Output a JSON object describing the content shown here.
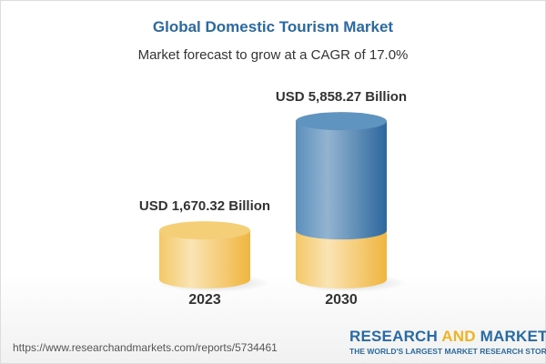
{
  "chart_data": {
    "type": "bar",
    "title": "Global Domestic Tourism Market",
    "subtitle": "Market forecast to grow at a CAGR of 17.0%",
    "categories": [
      "2023",
      "2030"
    ],
    "values": [
      1670.32,
      5858.27
    ],
    "data_labels": [
      "USD 1,670.32 Billion",
      "USD 5,858.27 Billion"
    ],
    "unit": "USD Billion",
    "style": "3d-cylinder",
    "colors": {
      "base": "#f2c45a",
      "growth": "#3f7bb0",
      "title": "#2a6aa3"
    }
  },
  "footer": {
    "url": "https://www.researchandmarkets.com/reports/5734461",
    "logo_part1": "RESEARCH ",
    "logo_part2": "AND",
    "logo_part3": " MARKETS",
    "tagline": "THE WORLD'S LARGEST MARKET RESEARCH STORE"
  }
}
